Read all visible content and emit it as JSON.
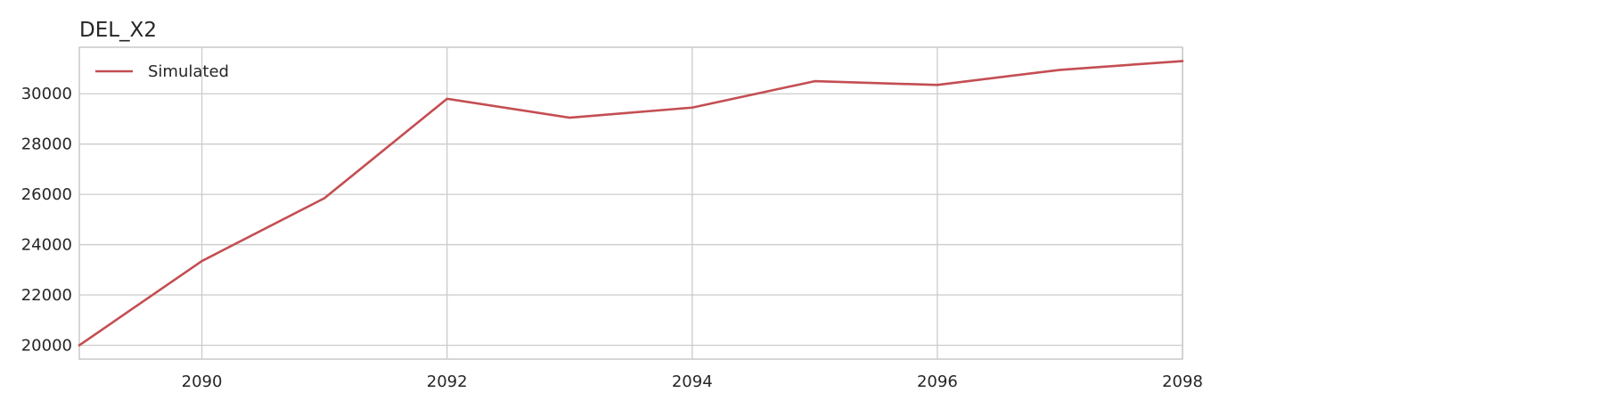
{
  "chart_data": {
    "type": "line",
    "title": "DEL_X2",
    "xlabel": "",
    "ylabel": "",
    "x": [
      2089,
      2090,
      2091,
      2092,
      2093,
      2094,
      2095,
      2096,
      2097,
      2098
    ],
    "series": [
      {
        "name": "Simulated",
        "color": "#c44e52",
        "values": [
          20000,
          23350,
          25850,
          29800,
          29050,
          29450,
          30500,
          30350,
          30950,
          31300
        ]
      }
    ],
    "xlim": [
      2089,
      2098
    ],
    "ylim": [
      19450,
      31850
    ],
    "xticks": [
      2090,
      2092,
      2094,
      2096,
      2098
    ],
    "yticks": [
      20000,
      22000,
      24000,
      26000,
      28000,
      30000
    ],
    "grid": true,
    "legend_position": "top-left"
  }
}
